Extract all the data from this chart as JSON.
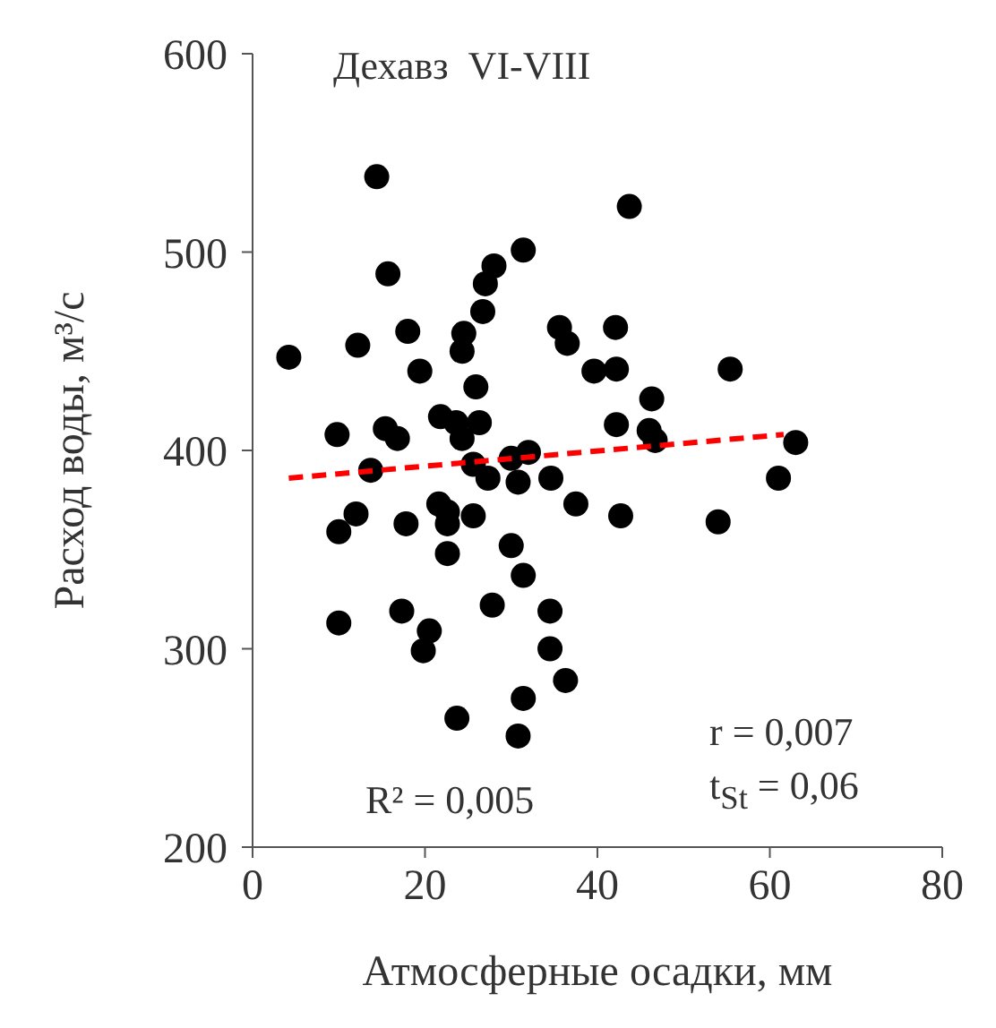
{
  "chart_data": {
    "type": "scatter",
    "title": "Дехавз  VI-VIII",
    "xlabel": "Атмосферные осадки, мм",
    "ylabel": "Расход воды, м³/с",
    "xlim": [
      0,
      80
    ],
    "xticks": [
      0,
      20,
      40,
      60,
      80
    ],
    "ylim": [
      200,
      600
    ],
    "yticks": [
      200,
      300,
      400,
      500,
      600
    ],
    "grid": false,
    "legend": false,
    "annotations": [
      "R² = 0,005",
      "r = 0,007",
      "t$_{St}$ = 0,06"
    ],
    "series": [
      {
        "color": "#000000",
        "marker": "circle",
        "x": [
          14.4,
          31.4,
          15.7,
          28,
          27,
          26.7,
          4.2,
          12.2,
          18,
          24.5,
          24.3,
          35.6,
          36.5,
          19.4,
          39.6,
          25.9,
          26.3,
          9.8,
          15.4,
          16.8,
          21.8,
          23.6,
          24.3,
          25.6,
          13.7,
          27.3,
          30,
          32,
          30.8,
          34.6,
          37.5,
          12,
          17.8,
          21.6,
          22.6,
          25.6,
          10,
          22.6,
          22.6,
          30,
          31.4,
          10,
          17.3,
          20.5,
          19.8,
          27.8,
          34.5,
          34.5,
          36.3,
          31.4,
          23.7,
          30.8,
          43.7,
          42.1,
          42.2,
          55.4,
          46.3,
          42.2,
          46,
          46.7,
          63,
          61,
          42.7,
          54
        ],
        "values": [
          538,
          501,
          489,
          493,
          484,
          470,
          447,
          453,
          460,
          459,
          450,
          462,
          454,
          440,
          440,
          432,
          414,
          408,
          411,
          406,
          417,
          414,
          406,
          393,
          390,
          386,
          396,
          399,
          384,
          386,
          373,
          368,
          363,
          373,
          369,
          367,
          359,
          363,
          348,
          352,
          337,
          313,
          319,
          309,
          299,
          322,
          319,
          300,
          284,
          275,
          265,
          256,
          523,
          462,
          441,
          441,
          426,
          413,
          410,
          405,
          404,
          386,
          367,
          364
        ]
      },
      {
        "type": "line",
        "color": "#ff0000",
        "line_style": "dashed",
        "marker": "none",
        "x": [
          4.2,
          61.6
        ],
        "values": [
          386,
          408
        ]
      }
    ]
  }
}
